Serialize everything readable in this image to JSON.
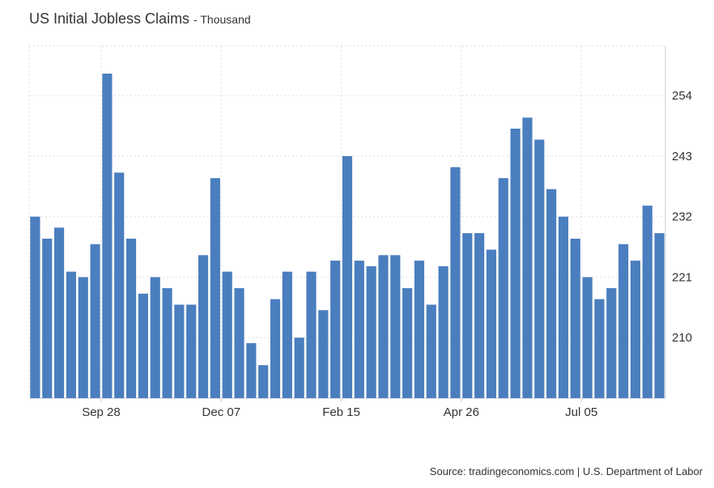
{
  "header": {
    "title": "US Initial Jobless Claims",
    "subtitle": "- Thousand"
  },
  "footer": {
    "source": "Source: tradingeconomics.com | U.S. Department of Labor"
  },
  "colors": {
    "bar": "#4a7ebf",
    "grid": "#dddddd",
    "axis": "#cccccc",
    "text": "#333333"
  },
  "chart_data": {
    "type": "bar",
    "title": "US Initial Jobless Claims",
    "subtitle": "- Thousand",
    "ylabel": "Thousand",
    "ylim": [
      199,
      263
    ],
    "y_ticks": [
      210,
      221,
      232,
      243,
      254
    ],
    "x_tick_labels": [
      {
        "label": "Sep 28",
        "index": 5.5
      },
      {
        "label": "Dec 07",
        "index": 15.5
      },
      {
        "label": "Feb 15",
        "index": 25.5
      },
      {
        "label": "Apr 26",
        "index": 35.5
      },
      {
        "label": "Jul 05",
        "index": 45.5
      }
    ],
    "grid": true,
    "values": [
      232,
      228,
      230,
      222,
      221,
      227,
      258,
      240,
      228,
      218,
      221,
      219,
      216,
      216,
      225,
      239,
      222,
      219,
      209,
      205,
      217,
      222,
      210,
      222,
      215,
      224,
      243,
      224,
      223,
      225,
      225,
      219,
      224,
      216,
      223,
      241,
      229,
      229,
      226,
      239,
      248,
      250,
      246,
      237,
      232,
      228,
      221,
      217,
      219,
      227,
      224,
      234,
      229
    ]
  }
}
